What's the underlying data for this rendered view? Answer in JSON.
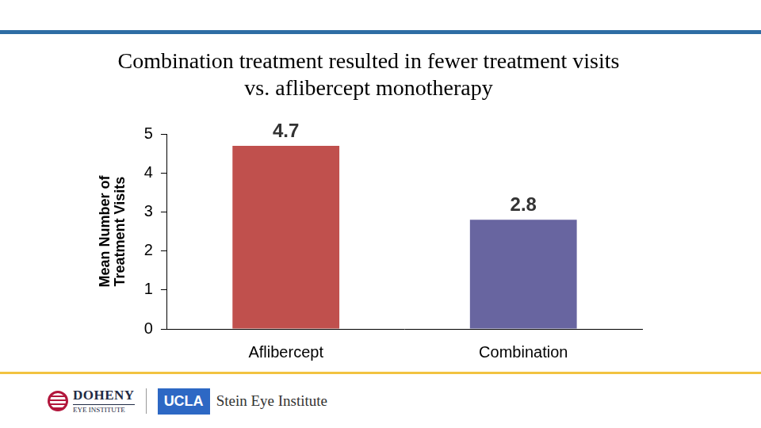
{
  "chart_data": {
    "type": "bar",
    "title": [
      "Combination treatment resulted in fewer treatment visits",
      "vs. aflibercept monotherapy"
    ],
    "y_label": [
      "Mean Number of",
      "Treatment Visits"
    ],
    "categories": [
      "Aflibercept",
      "Combination"
    ],
    "values": [
      4.7,
      2.8
    ],
    "colors": [
      "#c0504d",
      "#6865a0"
    ],
    "ylim": [
      0,
      5
    ],
    "yticks": [
      0,
      1,
      2,
      3,
      4,
      5
    ],
    "grid": false,
    "data_labels": true
  },
  "footer": {
    "logos": [
      "DOHENY",
      "EYE INSTITUTE",
      "UCLA",
      "Stein Eye Institute"
    ]
  }
}
